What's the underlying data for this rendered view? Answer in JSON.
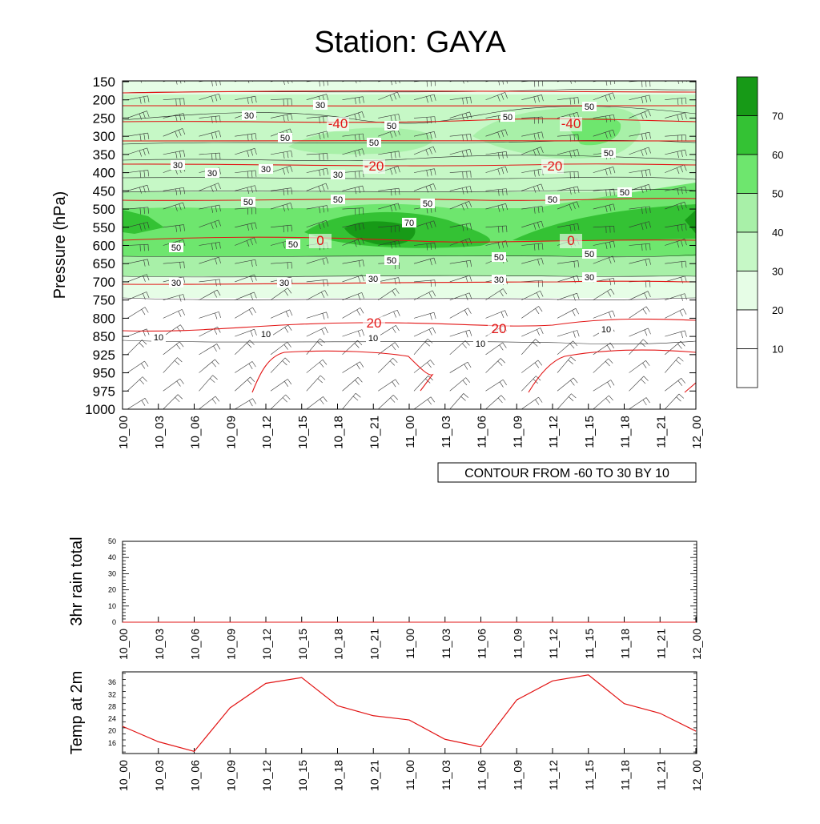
{
  "title": "Station: GAYA",
  "time_labels": [
    "10_00",
    "10_03",
    "10_06",
    "10_09",
    "10_12",
    "10_15",
    "10_18",
    "10_21",
    "11_00",
    "11_03",
    "11_06",
    "11_09",
    "11_12",
    "11_15",
    "11_18",
    "11_21",
    "12_00"
  ],
  "cross_section": {
    "ylabel": "Pressure (hPa)",
    "levels": [
      150,
      200,
      250,
      300,
      350,
      400,
      450,
      500,
      550,
      600,
      650,
      700,
      750,
      800,
      850,
      925,
      950,
      975,
      1000
    ],
    "contour_note": "CONTOUR FROM -60 TO 30 BY 10",
    "colorbar": {
      "labels": [
        "10",
        "20",
        "30",
        "40",
        "50",
        "60",
        "70"
      ],
      "colors": [
        "#ffffff",
        "#ffffff",
        "#e6fde6",
        "#c6f8c6",
        "#a8f0a8",
        "#6ee66e",
        "#34c234",
        "#179a17"
      ]
    },
    "rh_labels": [
      "10",
      "30",
      "50",
      "70"
    ],
    "temp_labels": [
      "-40",
      "-20",
      "0",
      "20"
    ],
    "colors": {
      "temperature": "#e21515",
      "contour": "#222222"
    }
  },
  "chart_data": [
    {
      "type": "heatmap",
      "title": "Station: GAYA",
      "ylabel": "Pressure (hPa)",
      "y_axis": "pressure, inverted",
      "yrange": [
        150,
        1000
      ],
      "fill_variable_levels": [
        10,
        20,
        30,
        40,
        50,
        60,
        70
      ],
      "temperature_contours": [
        -40,
        -20,
        0,
        20
      ]
    },
    {
      "type": "line",
      "ylabel": "3hr rain total",
      "ylim": [
        0,
        50
      ],
      "yticks": [
        0,
        10,
        20,
        30,
        40,
        50
      ],
      "x": [
        "10_00",
        "10_03",
        "10_06",
        "10_09",
        "10_12",
        "10_15",
        "10_18",
        "10_21",
        "11_00",
        "11_03",
        "11_06",
        "11_09",
        "11_12",
        "11_15",
        "11_18",
        "11_21",
        "12_00"
      ],
      "values": [
        0,
        0,
        0,
        0,
        0,
        0,
        0,
        0,
        0,
        0,
        0,
        0,
        0,
        0,
        0,
        0,
        0
      ]
    },
    {
      "type": "line",
      "ylabel": "Temp at 2m",
      "ylim": [
        12.5,
        39.5
      ],
      "yticks": [
        16,
        20,
        24,
        28,
        32,
        36
      ],
      "x": [
        "10_00",
        "10_03",
        "10_06",
        "10_09",
        "10_12",
        "10_15",
        "10_18",
        "10_21",
        "11_00",
        "11_03",
        "11_06",
        "11_09",
        "11_12",
        "11_15",
        "11_18",
        "11_21",
        "12_00"
      ],
      "values": [
        21.5,
        16.4,
        13.2,
        27.6,
        35.7,
        37.6,
        28.3,
        25.0,
        23.6,
        17.2,
        14.7,
        30.2,
        36.5,
        38.5,
        29.0,
        25.8,
        19.9
      ],
      "color": "#e21515"
    }
  ]
}
